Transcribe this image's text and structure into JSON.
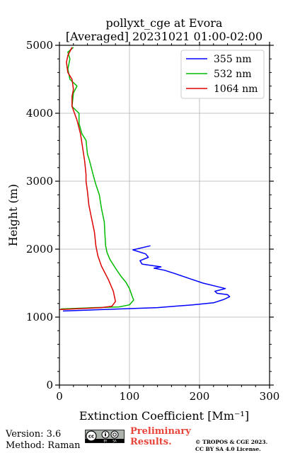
{
  "chart_data": {
    "type": "line",
    "title": "pollyxt_cge at Evora",
    "subtitle": "[Averaged] 20231021 01:00-02:00",
    "xlabel": "Extinction Coefficient [Mm⁻¹]",
    "ylabel": "Height (m)",
    "xlim": [
      0,
      300
    ],
    "ylim": [
      0,
      5000
    ],
    "xticks": [
      "0",
      "100",
      "200",
      "300"
    ],
    "yticks": [
      "0",
      "1000",
      "2000",
      "3000",
      "4000",
      "5000"
    ],
    "grid": true,
    "legend_position": "top-right",
    "series": [
      {
        "name": "355 nm",
        "color": "#0000ff",
        "points": [
          [
            5,
            1090
          ],
          [
            60,
            1110
          ],
          [
            140,
            1140
          ],
          [
            190,
            1180
          ],
          [
            220,
            1210
          ],
          [
            235,
            1260
          ],
          [
            243,
            1300
          ],
          [
            240,
            1330
          ],
          [
            225,
            1350
          ],
          [
            222,
            1380
          ],
          [
            237,
            1420
          ],
          [
            225,
            1450
          ],
          [
            205,
            1500
          ],
          [
            185,
            1570
          ],
          [
            165,
            1640
          ],
          [
            150,
            1690
          ],
          [
            135,
            1720
          ],
          [
            145,
            1740
          ],
          [
            118,
            1780
          ],
          [
            115,
            1830
          ],
          [
            127,
            1880
          ],
          [
            123,
            1930
          ],
          [
            105,
            1990
          ],
          [
            130,
            2050
          ]
        ]
      },
      {
        "name": "532 nm",
        "color": "#00bb00",
        "points": [
          [
            2,
            1120
          ],
          [
            50,
            1140
          ],
          [
            85,
            1150
          ],
          [
            100,
            1180
          ],
          [
            106,
            1250
          ],
          [
            103,
            1330
          ],
          [
            100,
            1420
          ],
          [
            95,
            1510
          ],
          [
            88,
            1600
          ],
          [
            80,
            1720
          ],
          [
            72,
            1850
          ],
          [
            68,
            1950
          ],
          [
            66,
            2050
          ],
          [
            65,
            2200
          ],
          [
            64,
            2400
          ],
          [
            60,
            2600
          ],
          [
            57,
            2800
          ],
          [
            52,
            2950
          ],
          [
            48,
            3100
          ],
          [
            43,
            3300
          ],
          [
            40,
            3400
          ],
          [
            38,
            3600
          ],
          [
            32,
            3700
          ],
          [
            28,
            3850
          ],
          [
            28,
            4000
          ],
          [
            18,
            4100
          ],
          [
            20,
            4300
          ],
          [
            25,
            4400
          ],
          [
            15,
            4500
          ],
          [
            12,
            4650
          ],
          [
            15,
            4800
          ],
          [
            12,
            4900
          ],
          [
            20,
            4970
          ]
        ]
      },
      {
        "name": "1064 nm",
        "color": "#dd0000",
        "points": [
          [
            0,
            1110
          ],
          [
            30,
            1125
          ],
          [
            60,
            1140
          ],
          [
            75,
            1160
          ],
          [
            80,
            1230
          ],
          [
            77,
            1380
          ],
          [
            70,
            1550
          ],
          [
            60,
            1750
          ],
          [
            55,
            1900
          ],
          [
            52,
            2050
          ],
          [
            50,
            2250
          ],
          [
            46,
            2450
          ],
          [
            42,
            2650
          ],
          [
            40,
            2850
          ],
          [
            38,
            3000
          ],
          [
            38,
            3100
          ],
          [
            36,
            3300
          ],
          [
            33,
            3500
          ],
          [
            30,
            3700
          ],
          [
            25,
            3900
          ],
          [
            18,
            4100
          ],
          [
            18,
            4250
          ],
          [
            20,
            4350
          ],
          [
            18,
            4500
          ],
          [
            12,
            4600
          ],
          [
            10,
            4750
          ],
          [
            12,
            4850
          ],
          [
            18,
            4970
          ]
        ]
      }
    ]
  },
  "footer": {
    "version": "Version: 3.6",
    "method": "Method: Raman",
    "license_badge": "cc-by-sa-icon",
    "preliminary_line1": "Preliminary",
    "preliminary_line2": "Results.",
    "copyright_line1": "© TROPOS & CGE 2023.",
    "copyright_line2": "CC BY SA 4.0 License."
  }
}
